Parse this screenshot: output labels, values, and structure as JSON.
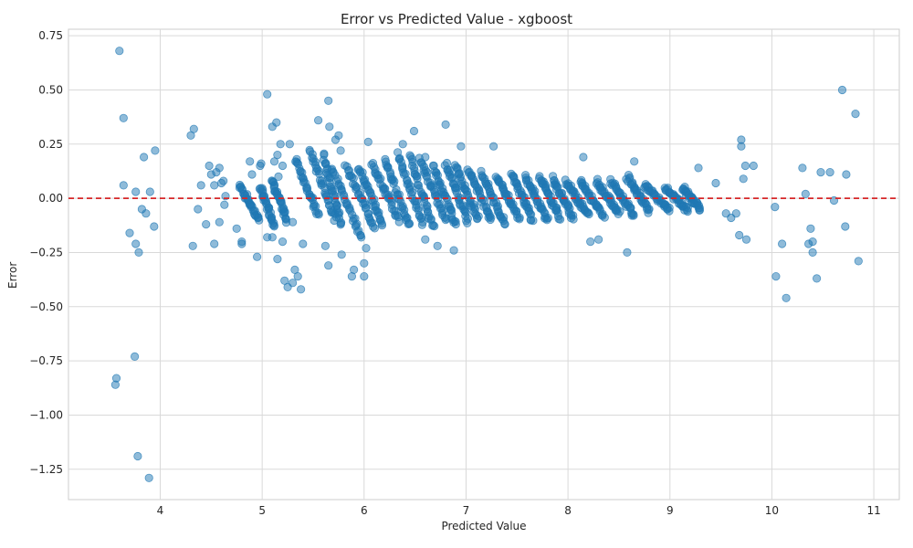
{
  "chart_data": {
    "type": "scatter",
    "title": "Error vs Predicted Value - xgboost",
    "xlabel": "Predicted Value",
    "ylabel": "Error",
    "xlim": [
      3.1,
      11.25
    ],
    "ylim": [
      -1.39,
      0.78
    ],
    "xticks": [
      4,
      5,
      6,
      7,
      8,
      9,
      10,
      11
    ],
    "xtick_labels": [
      "4",
      "5",
      "6",
      "7",
      "8",
      "9",
      "10",
      "11"
    ],
    "yticks": [
      0.75,
      0.5,
      0.25,
      0.0,
      -0.25,
      -0.5,
      -0.75,
      -1.0,
      -1.25
    ],
    "ytick_labels": [
      "0.75",
      "0.50",
      "0.25",
      "0.00",
      "−0.25",
      "−0.50",
      "−0.75",
      "−1.00",
      "−1.25"
    ],
    "grid": true,
    "reference_line": {
      "y": 0.0,
      "color": "#d62728",
      "style": "dashed"
    },
    "marker_color": "#1f77b4",
    "points": [
      [
        3.6,
        0.68
      ],
      [
        3.64,
        0.37
      ],
      [
        3.64,
        0.06
      ],
      [
        3.57,
        -0.83
      ],
      [
        3.56,
        -0.86
      ],
      [
        3.75,
        -0.73
      ],
      [
        3.78,
        -1.19
      ],
      [
        3.89,
        -1.29
      ],
      [
        3.7,
        -0.16
      ],
      [
        3.76,
        -0.21
      ],
      [
        3.79,
        -0.25
      ],
      [
        3.82,
        -0.05
      ],
      [
        3.86,
        -0.07
      ],
      [
        3.76,
        0.03
      ],
      [
        3.84,
        0.19
      ],
      [
        3.9,
        0.03
      ],
      [
        3.95,
        0.22
      ],
      [
        3.94,
        -0.13
      ],
      [
        4.3,
        0.29
      ],
      [
        4.33,
        0.32
      ],
      [
        4.32,
        -0.22
      ],
      [
        4.37,
        -0.05
      ],
      [
        4.4,
        0.06
      ],
      [
        4.45,
        -0.12
      ],
      [
        4.48,
        0.15
      ],
      [
        4.5,
        0.11
      ],
      [
        4.53,
        0.06
      ],
      [
        4.55,
        0.12
      ],
      [
        4.58,
        0.14
      ],
      [
        4.53,
        -0.21
      ],
      [
        4.58,
        -0.11
      ],
      [
        4.6,
        0.07
      ],
      [
        4.62,
        0.08
      ],
      [
        4.64,
        0.01
      ],
      [
        4.63,
        -0.03
      ],
      [
        4.75,
        -0.14
      ],
      [
        4.8,
        -0.2
      ],
      [
        4.8,
        -0.21
      ],
      [
        4.88,
        0.17
      ],
      [
        4.9,
        0.11
      ],
      [
        4.95,
        -0.27
      ],
      [
        4.99,
        0.16
      ],
      [
        4.98,
        0.15
      ],
      [
        5.05,
        0.48
      ],
      [
        5.1,
        0.33
      ],
      [
        5.14,
        0.35
      ],
      [
        5.12,
        0.17
      ],
      [
        5.18,
        0.25
      ],
      [
        5.15,
        0.2
      ],
      [
        5.2,
        0.15
      ],
      [
        5.16,
        0.1
      ],
      [
        5.05,
        -0.18
      ],
      [
        5.1,
        -0.18
      ],
      [
        5.2,
        -0.2
      ],
      [
        5.15,
        -0.28
      ],
      [
        5.22,
        -0.38
      ],
      [
        5.25,
        -0.41
      ],
      [
        5.3,
        -0.39
      ],
      [
        5.32,
        -0.33
      ],
      [
        5.35,
        -0.36
      ],
      [
        5.38,
        -0.42
      ],
      [
        5.27,
        0.25
      ],
      [
        5.3,
        -0.11
      ],
      [
        5.4,
        -0.21
      ],
      [
        5.55,
        0.36
      ],
      [
        5.65,
        0.45
      ],
      [
        5.66,
        0.33
      ],
      [
        5.72,
        0.27
      ],
      [
        5.75,
        0.29
      ],
      [
        5.77,
        0.22
      ],
      [
        5.62,
        -0.22
      ],
      [
        5.65,
        -0.31
      ],
      [
        5.78,
        -0.26
      ],
      [
        5.88,
        -0.36
      ],
      [
        5.9,
        -0.33
      ],
      [
        6.0,
        -0.3
      ],
      [
        6.0,
        -0.36
      ],
      [
        6.02,
        -0.23
      ],
      [
        6.04,
        0.26
      ],
      [
        6.38,
        0.25
      ],
      [
        6.49,
        0.31
      ],
      [
        6.6,
        0.19
      ],
      [
        6.8,
        0.34
      ],
      [
        6.95,
        0.24
      ],
      [
        7.27,
        0.24
      ],
      [
        6.88,
        -0.24
      ],
      [
        6.72,
        -0.22
      ],
      [
        6.6,
        -0.19
      ],
      [
        8.15,
        0.19
      ],
      [
        8.22,
        -0.2
      ],
      [
        8.3,
        -0.19
      ],
      [
        8.58,
        -0.25
      ],
      [
        8.65,
        0.17
      ],
      [
        9.28,
        0.14
      ],
      [
        9.45,
        0.07
      ],
      [
        9.55,
        -0.07
      ],
      [
        9.7,
        0.27
      ],
      [
        9.7,
        0.24
      ],
      [
        9.74,
        0.15
      ],
      [
        9.82,
        0.15
      ],
      [
        9.75,
        -0.19
      ],
      [
        9.68,
        -0.17
      ],
      [
        9.6,
        -0.09
      ],
      [
        9.65,
        -0.07
      ],
      [
        9.72,
        0.09
      ],
      [
        10.03,
        -0.04
      ],
      [
        10.04,
        -0.36
      ],
      [
        10.1,
        -0.21
      ],
      [
        10.14,
        -0.46
      ],
      [
        10.3,
        0.14
      ],
      [
        10.33,
        0.02
      ],
      [
        10.36,
        -0.21
      ],
      [
        10.38,
        -0.14
      ],
      [
        10.4,
        -0.25
      ],
      [
        10.4,
        -0.2
      ],
      [
        10.44,
        -0.37
      ],
      [
        10.48,
        0.12
      ],
      [
        10.57,
        0.12
      ],
      [
        10.61,
        -0.01
      ],
      [
        10.69,
        0.5
      ],
      [
        10.73,
        0.11
      ],
      [
        10.72,
        -0.13
      ],
      [
        10.82,
        0.39
      ],
      [
        10.85,
        -0.29
      ]
    ],
    "dense_bands": [
      {
        "x0": 4.78,
        "y0": 0.06,
        "x1": 4.97,
        "y1": -0.1
      },
      {
        "x0": 4.98,
        "y0": 0.05,
        "x1": 5.12,
        "y1": -0.12
      },
      {
        "x0": 5.1,
        "y0": 0.08,
        "x1": 5.24,
        "y1": -0.1
      },
      {
        "x0": 5.33,
        "y0": 0.18,
        "x1": 5.55,
        "y1": -0.08
      },
      {
        "x0": 5.47,
        "y0": 0.22,
        "x1": 5.72,
        "y1": -0.1
      },
      {
        "x0": 5.6,
        "y0": 0.2,
        "x1": 5.78,
        "y1": -0.12
      },
      {
        "x0": 5.68,
        "y0": 0.14,
        "x1": 5.98,
        "y1": -0.18
      },
      {
        "x0": 5.82,
        "y0": 0.15,
        "x1": 6.1,
        "y1": -0.13
      },
      {
        "x0": 5.95,
        "y0": 0.14,
        "x1": 6.18,
        "y1": -0.12
      },
      {
        "x0": 6.08,
        "y0": 0.16,
        "x1": 6.34,
        "y1": -0.1
      },
      {
        "x0": 6.2,
        "y0": 0.18,
        "x1": 6.45,
        "y1": -0.13
      },
      {
        "x0": 6.33,
        "y0": 0.2,
        "x1": 6.58,
        "y1": -0.12
      },
      {
        "x0": 6.45,
        "y0": 0.19,
        "x1": 6.68,
        "y1": -0.14
      },
      {
        "x0": 6.55,
        "y0": 0.18,
        "x1": 6.8,
        "y1": -0.1
      },
      {
        "x0": 6.68,
        "y0": 0.15,
        "x1": 6.9,
        "y1": -0.12
      },
      {
        "x0": 6.8,
        "y0": 0.16,
        "x1": 7.02,
        "y1": -0.11
      },
      {
        "x0": 6.9,
        "y0": 0.15,
        "x1": 7.12,
        "y1": -0.1
      },
      {
        "x0": 7.02,
        "y0": 0.14,
        "x1": 7.25,
        "y1": -0.1
      },
      {
        "x0": 7.15,
        "y0": 0.12,
        "x1": 7.38,
        "y1": -0.12
      },
      {
        "x0": 7.3,
        "y0": 0.1,
        "x1": 7.52,
        "y1": -0.09
      },
      {
        "x0": 7.45,
        "y0": 0.12,
        "x1": 7.65,
        "y1": -0.1
      },
      {
        "x0": 7.58,
        "y0": 0.1,
        "x1": 7.8,
        "y1": -0.1
      },
      {
        "x0": 7.72,
        "y0": 0.1,
        "x1": 7.92,
        "y1": -0.09
      },
      {
        "x0": 7.85,
        "y0": 0.09,
        "x1": 8.05,
        "y1": -0.09
      },
      {
        "x0": 7.98,
        "y0": 0.08,
        "x1": 8.2,
        "y1": -0.08
      },
      {
        "x0": 8.12,
        "y0": 0.08,
        "x1": 8.35,
        "y1": -0.08
      },
      {
        "x0": 8.28,
        "y0": 0.08,
        "x1": 8.5,
        "y1": -0.07
      },
      {
        "x0": 8.42,
        "y0": 0.08,
        "x1": 8.65,
        "y1": -0.08
      },
      {
        "x0": 8.58,
        "y0": 0.1,
        "x1": 8.8,
        "y1": -0.06
      },
      {
        "x0": 8.75,
        "y0": 0.06,
        "x1": 9.0,
        "y1": -0.06
      },
      {
        "x0": 8.95,
        "y0": 0.05,
        "x1": 9.18,
        "y1": -0.06
      },
      {
        "x0": 9.12,
        "y0": 0.05,
        "x1": 9.3,
        "y1": -0.05
      }
    ]
  }
}
